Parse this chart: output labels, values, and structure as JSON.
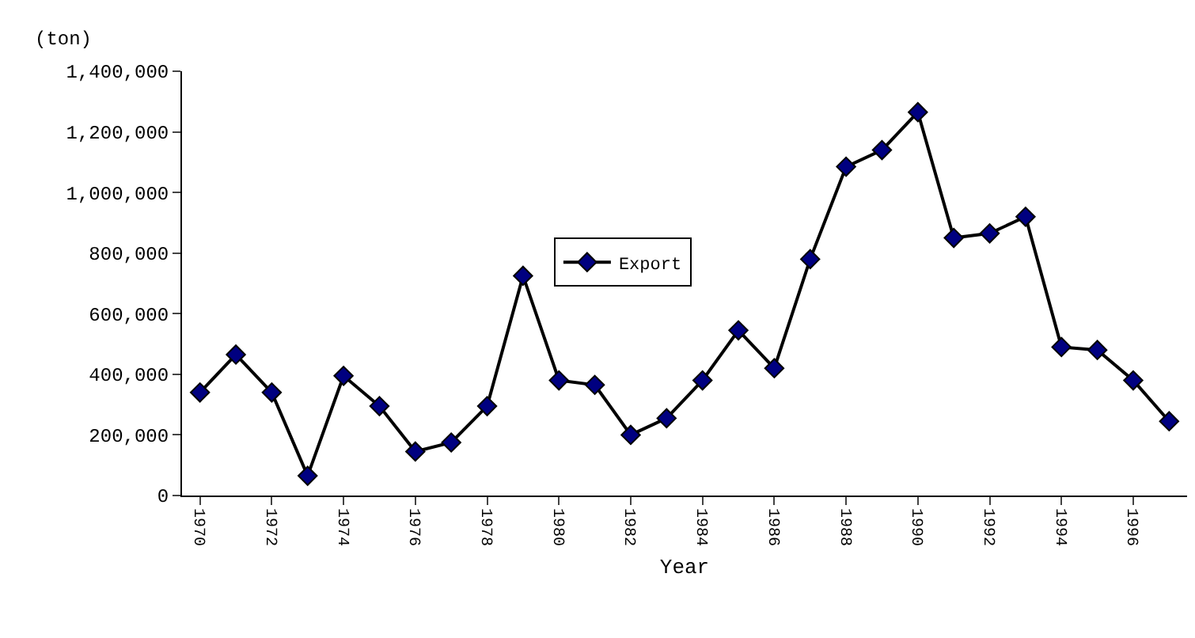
{
  "chart_data": {
    "type": "line",
    "xlabel": "Year",
    "ylabel": "(ton)",
    "categories": [
      "1970",
      null,
      "1972",
      null,
      "1974",
      null,
      "1976",
      null,
      "1978",
      null,
      "1980",
      null,
      "1982",
      null,
      "1984",
      null,
      "1986",
      null,
      "1988",
      null,
      "1990",
      null,
      "1992",
      null,
      "1994",
      null,
      "1996",
      null
    ],
    "series": [
      {
        "name": "Export",
        "color": "#000080",
        "values": [
          340000,
          465000,
          340000,
          65000,
          395000,
          295000,
          145000,
          175000,
          295000,
          725000,
          380000,
          365000,
          200000,
          255000,
          380000,
          545000,
          420000,
          780000,
          1085000,
          1140000,
          1265000,
          850000,
          865000,
          920000,
          490000,
          480000,
          380000,
          245000
        ]
      }
    ],
    "ylim": [
      0,
      1400000
    ],
    "yticks": [
      {
        "value": 0,
        "label": "0"
      },
      {
        "value": 200000,
        "label": "200,000"
      },
      {
        "value": 400000,
        "label": "400,000"
      },
      {
        "value": 600000,
        "label": "600,000"
      },
      {
        "value": 800000,
        "label": "800,000"
      },
      {
        "value": 1000000,
        "label": "1,000,000"
      },
      {
        "value": 1200000,
        "label": "1,200,000"
      },
      {
        "value": 1400000,
        "label": "1,400,000"
      }
    ],
    "grid": false,
    "legend": "center",
    "marker": "diamond",
    "line_style": "solid"
  }
}
